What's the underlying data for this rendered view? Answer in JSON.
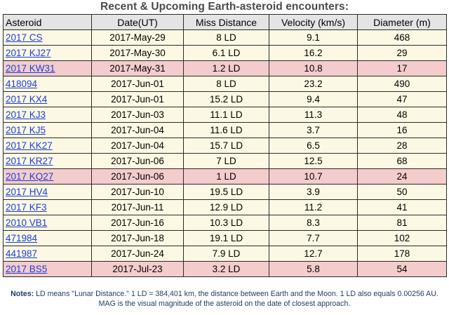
{
  "title": "Recent & Upcoming Earth-asteroid encounters:",
  "table": {
    "headers": [
      "Asteroid",
      "Date(UT)",
      "Miss Distance",
      "Velocity (km/s)",
      "Diameter (m)"
    ],
    "rows": [
      {
        "asteroid": "2017 CS",
        "date": "2017-May-29",
        "miss": "8 LD",
        "velocity": "9.1",
        "diameter": "468",
        "highlight": false
      },
      {
        "asteroid": "2017 KJ27",
        "date": "2017-May-30",
        "miss": "6.1 LD",
        "velocity": "16.2",
        "diameter": "29",
        "highlight": false
      },
      {
        "asteroid": "2017 KW31",
        "date": "2017-May-31",
        "miss": "1.2 LD",
        "velocity": "10.8",
        "diameter": "17",
        "highlight": true
      },
      {
        "asteroid": "418094",
        "date": "2017-Jun-01",
        "miss": "8 LD",
        "velocity": "23.2",
        "diameter": "490",
        "highlight": false
      },
      {
        "asteroid": "2017 KX4",
        "date": "2017-Jun-01",
        "miss": "15.2 LD",
        "velocity": "9.4",
        "diameter": "47",
        "highlight": false
      },
      {
        "asteroid": "2017 KJ3",
        "date": "2017-Jun-03",
        "miss": "11.1 LD",
        "velocity": "11.3",
        "diameter": "48",
        "highlight": false
      },
      {
        "asteroid": "2017 KJ5",
        "date": "2017-Jun-04",
        "miss": "11.6 LD",
        "velocity": "3.7",
        "diameter": "16",
        "highlight": false
      },
      {
        "asteroid": "2017 KK27",
        "date": "2017-Jun-04",
        "miss": "15.7 LD",
        "velocity": "6.5",
        "diameter": "28",
        "highlight": false
      },
      {
        "asteroid": "2017 KR27",
        "date": "2017-Jun-06",
        "miss": "7 LD",
        "velocity": "12.5",
        "diameter": "68",
        "highlight": false
      },
      {
        "asteroid": "2017 KQ27",
        "date": "2017-Jun-06",
        "miss": "1 LD",
        "velocity": "10.7",
        "diameter": "24",
        "highlight": true
      },
      {
        "asteroid": "2017 HV4",
        "date": "2017-Jun-10",
        "miss": "19.5 LD",
        "velocity": "3.9",
        "diameter": "50",
        "highlight": false
      },
      {
        "asteroid": "2017 KF3",
        "date": "2017-Jun-11",
        "miss": "12.9 LD",
        "velocity": "11.2",
        "diameter": "41",
        "highlight": false
      },
      {
        "asteroid": "2010 VB1",
        "date": "2017-Jun-16",
        "miss": "10.3 LD",
        "velocity": "8.3",
        "diameter": "81",
        "highlight": false
      },
      {
        "asteroid": "471984",
        "date": "2017-Jun-18",
        "miss": "19.1 LD",
        "velocity": "7.7",
        "diameter": "102",
        "highlight": false
      },
      {
        "asteroid": "441987",
        "date": "2017-Jun-24",
        "miss": "7.9 LD",
        "velocity": "12.7",
        "diameter": "178",
        "highlight": false
      },
      {
        "asteroid": "2017 BS5",
        "date": "2017-Jul-23",
        "miss": "3.2 LD",
        "velocity": "5.8",
        "diameter": "54",
        "highlight": true
      }
    ]
  },
  "notes": {
    "label": "Notes:",
    "text": "LD means \"Lunar Distance.\" 1 LD = 384,401 km, the distance between Earth and the Moon. 1 LD also equals 0.00256 AU. MAG is the visual magnitude of the asteroid on the date of closest approach."
  },
  "colors": {
    "row_background": "#fdf8e4",
    "row_highlight": "#f4cccc",
    "header_background": "#e4e4e4",
    "link": "#1a3fd8"
  }
}
